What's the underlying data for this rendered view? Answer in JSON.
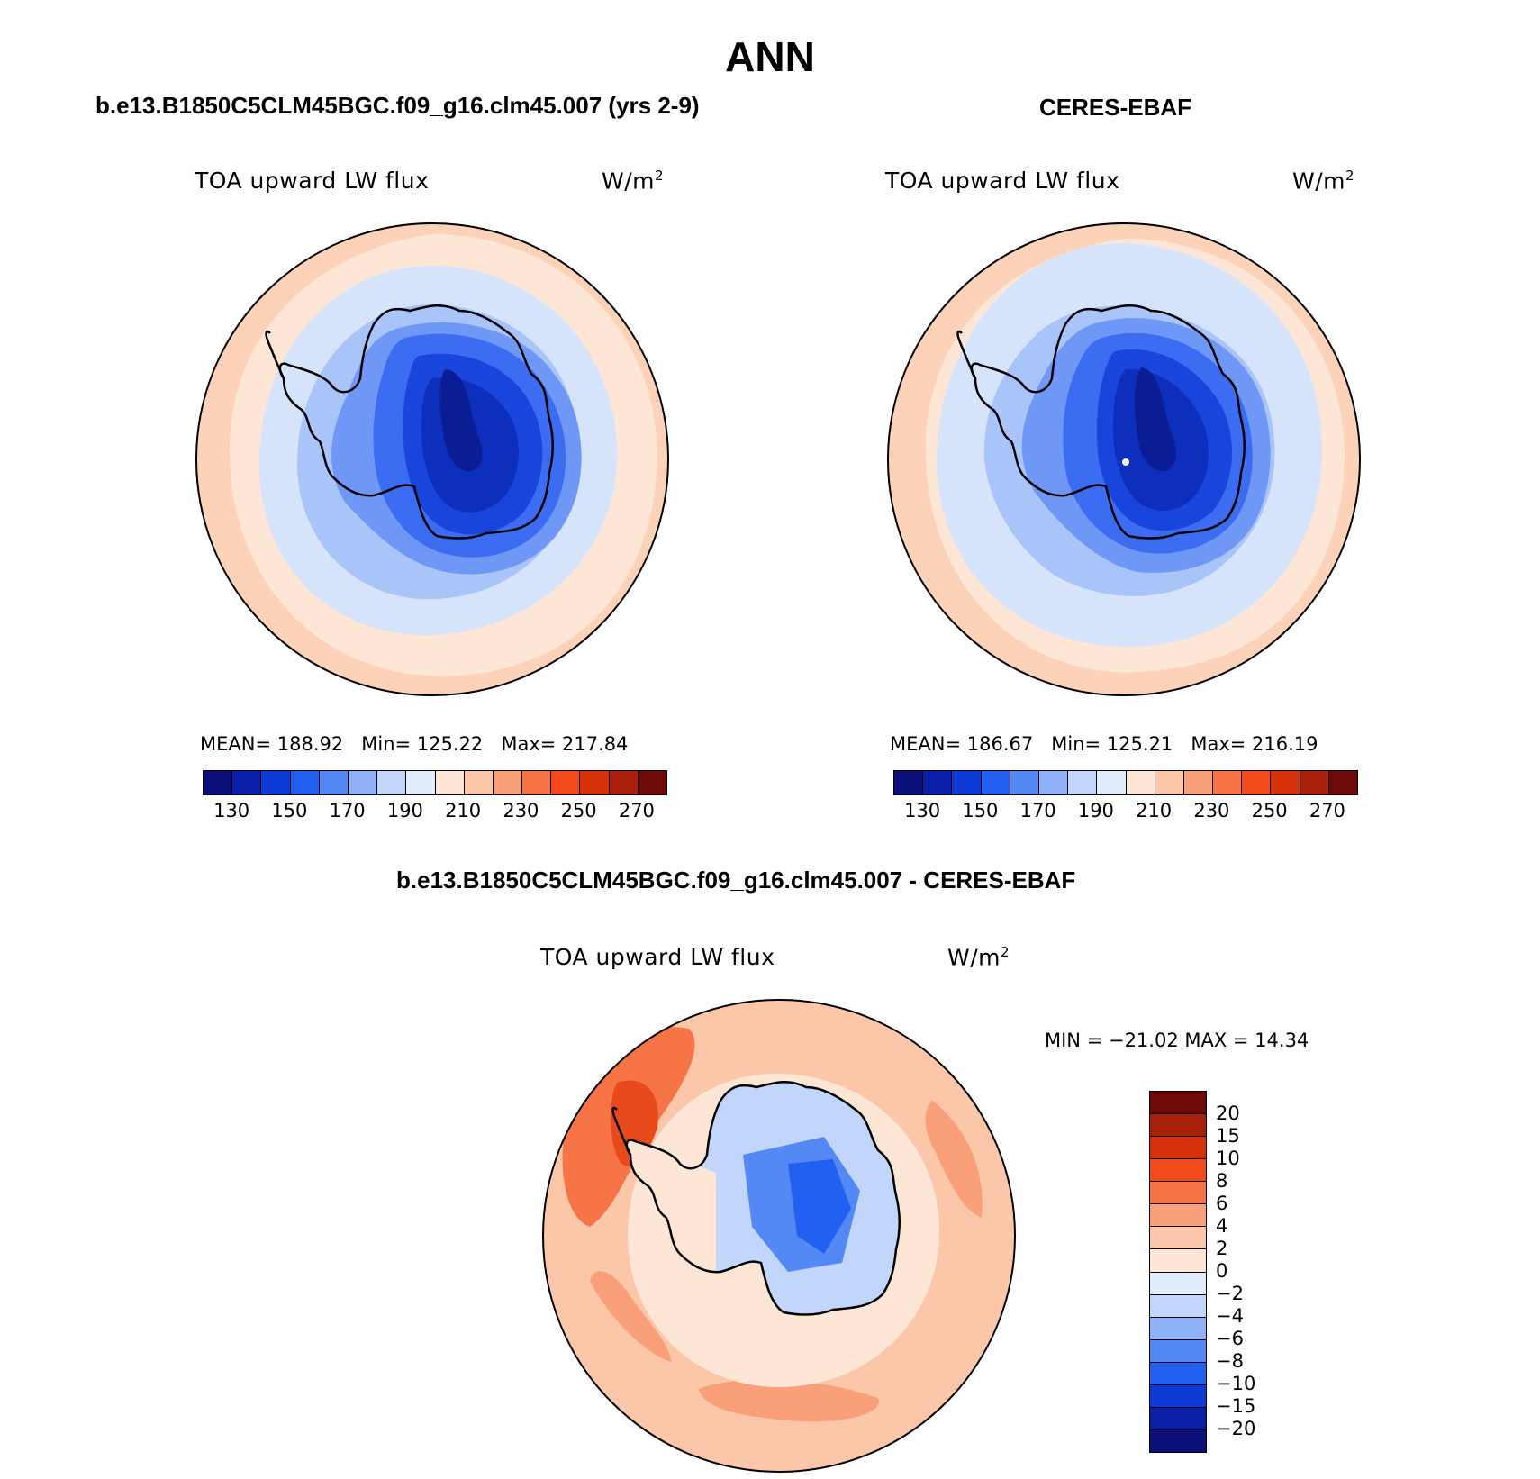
{
  "header": {
    "title": "ANN"
  },
  "panels": [
    {
      "case_title": "b.e13.B1850C5CLM45BGC.f09_g16.clm45.007 (yrs 2-9)",
      "variable": "TOA upward LW flux",
      "units": "W/m",
      "units_sup": "2",
      "stats": {
        "mean_label": "MEAN=",
        "mean": "188.92",
        "min_label": "Min=",
        "min": "125.22",
        "max_label": "Max=",
        "max": "217.84"
      }
    },
    {
      "case_title": "CERES-EBAF",
      "variable": "TOA upward LW flux",
      "units": "W/m",
      "units_sup": "2",
      "stats": {
        "mean_label": "MEAN=",
        "mean": "186.67",
        "min_label": "Min=",
        "min": "125.21",
        "max_label": "Max=",
        "max": "216.19"
      }
    }
  ],
  "diff_panel": {
    "case_title": "b.e13.B1850C5CLM45BGC.f09_g16.clm45.007 - CERES-EBAF",
    "variable": "TOA upward LW flux",
    "units": "W/m",
    "units_sup": "2",
    "minmax": "MIN = −21.02 MAX =  14.34"
  },
  "colorbar_abs": {
    "colors": [
      "#0a0f7a",
      "#0a1fa8",
      "#0b3ad4",
      "#2160f0",
      "#5488f5",
      "#8fb1f8",
      "#c2d6fb",
      "#e1ecfc",
      "#fde6d6",
      "#fcc7a9",
      "#f9a07b",
      "#f77447",
      "#f24a1a",
      "#d63209",
      "#a8200c",
      "#6e0b08"
    ],
    "tick_labels": [
      "130",
      "150",
      "170",
      "190",
      "210",
      "230",
      "250",
      "270"
    ]
  },
  "colorbar_diff": {
    "colors": [
      "#6e0b08",
      "#a8200c",
      "#d63209",
      "#f24a1a",
      "#f77447",
      "#f9a07b",
      "#fcc7a9",
      "#fde6d6",
      "#e1ecfc",
      "#c2d6fb",
      "#8fb1f8",
      "#5488f5",
      "#2160f0",
      "#0b3ad4",
      "#0a1fa8",
      "#0a0f7a"
    ],
    "tick_labels": [
      "20",
      "15",
      "10",
      "8",
      "6",
      "4",
      "2",
      "0",
      "−2",
      "−4",
      "−6",
      "−8",
      "−10",
      "−15",
      "−20"
    ]
  },
  "map_colors": {
    "ocean_outer": "#fcdcc8",
    "ocean_warm": "#fde6d6",
    "seaice_light": "#d5e4fb",
    "seaice_mid": "#a9c4f9",
    "coast_blue": "#6f98f6",
    "ant_mid": "#3b6cf2",
    "ant_deep": "#1a45dd",
    "ant_core": "#0d2fbc",
    "ant_center": "#0a1d95",
    "diff_red": "#f7804f",
    "diff_orange": "#f9a07b",
    "diff_deepred": "#e84a1c",
    "diff_blue": "#3f6ef0"
  }
}
